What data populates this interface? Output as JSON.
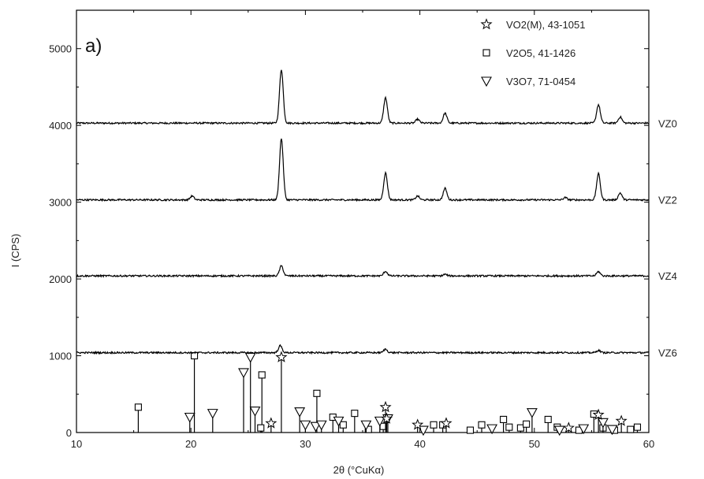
{
  "chart_data": {
    "type": "line",
    "panel_label": "a)",
    "xlabel": "2θ (°CuKα)",
    "ylabel": "I (CPS)",
    "xlim": [
      10,
      60
    ],
    "ylim": [
      0,
      5500
    ],
    "x_ticks": [
      10,
      20,
      30,
      40,
      50,
      60
    ],
    "y_ticks": [
      0,
      1000,
      2000,
      3000,
      4000,
      5000
    ],
    "y_tick_labels": [
      "0",
      "1000",
      "2000",
      "3000",
      "4000",
      "5000"
    ],
    "grid": false,
    "legend_position": "top-right",
    "legend": [
      {
        "marker": "star",
        "text": "VO2(M), 43-1051"
      },
      {
        "marker": "square",
        "text": "V2O5, 41-1426"
      },
      {
        "marker": "triangle-down",
        "text": "V3O7, 71-0454"
      }
    ],
    "series": [
      {
        "name": "VZ0",
        "baseline": 4030,
        "peaks": [
          [
            27.9,
            700
          ],
          [
            37.0,
            330
          ],
          [
            39.8,
            50
          ],
          [
            42.2,
            130
          ],
          [
            55.6,
            240
          ],
          [
            57.5,
            80
          ]
        ]
      },
      {
        "name": "VZ2",
        "baseline": 3030,
        "peaks": [
          [
            20.1,
            50
          ],
          [
            27.9,
            800
          ],
          [
            37.0,
            350
          ],
          [
            39.8,
            50
          ],
          [
            42.2,
            150
          ],
          [
            52.7,
            30
          ],
          [
            55.6,
            340
          ],
          [
            57.5,
            90
          ]
        ]
      },
      {
        "name": "VZ4",
        "baseline": 2040,
        "peaks": [
          [
            27.9,
            130
          ],
          [
            37.0,
            60
          ],
          [
            42.2,
            20
          ],
          [
            55.6,
            55
          ]
        ]
      },
      {
        "name": "VZ6",
        "baseline": 1040,
        "peaks": [
          [
            27.8,
            90
          ],
          [
            37.0,
            45
          ],
          [
            55.6,
            30
          ]
        ]
      }
    ],
    "reference_vo2": [
      [
        27.0,
        120
      ],
      [
        27.9,
        980
      ],
      [
        37.0,
        330
      ],
      [
        37.1,
        180
      ],
      [
        39.8,
        100
      ],
      [
        42.3,
        120
      ],
      [
        53.0,
        60
      ],
      [
        55.6,
        230
      ],
      [
        57.6,
        150
      ]
    ],
    "reference_v2o5": [
      [
        15.4,
        330
      ],
      [
        20.3,
        1000
      ],
      [
        26.2,
        750
      ],
      [
        26.1,
        60
      ],
      [
        31.0,
        510
      ],
      [
        32.4,
        200
      ],
      [
        33.3,
        100
      ],
      [
        34.3,
        250
      ],
      [
        35.5,
        40
      ],
      [
        36.8,
        80
      ],
      [
        41.2,
        100
      ],
      [
        42.0,
        100
      ],
      [
        44.4,
        30
      ],
      [
        45.4,
        100
      ],
      [
        47.3,
        170
      ],
      [
        47.8,
        70
      ],
      [
        48.8,
        60
      ],
      [
        49.3,
        110
      ],
      [
        51.2,
        170
      ],
      [
        52.0,
        70
      ],
      [
        53.9,
        30
      ],
      [
        55.2,
        240
      ],
      [
        56.0,
        60
      ],
      [
        57.0,
        30
      ],
      [
        58.4,
        40
      ],
      [
        59.0,
        70
      ]
    ],
    "reference_v3o7": [
      [
        19.9,
        200
      ],
      [
        21.9,
        250
      ],
      [
        24.6,
        780
      ],
      [
        25.2,
        980
      ],
      [
        25.6,
        280
      ],
      [
        29.5,
        270
      ],
      [
        30.0,
        100
      ],
      [
        30.9,
        80
      ],
      [
        31.4,
        100
      ],
      [
        32.9,
        150
      ],
      [
        35.3,
        100
      ],
      [
        36.5,
        150
      ],
      [
        37.2,
        180
      ],
      [
        40.3,
        30
      ],
      [
        46.3,
        50
      ],
      [
        49.8,
        260
      ],
      [
        52.2,
        30
      ],
      [
        54.3,
        50
      ],
      [
        56.0,
        130
      ],
      [
        56.8,
        40
      ]
    ],
    "colors": {
      "line": "#000000",
      "background": "#ffffff"
    }
  }
}
